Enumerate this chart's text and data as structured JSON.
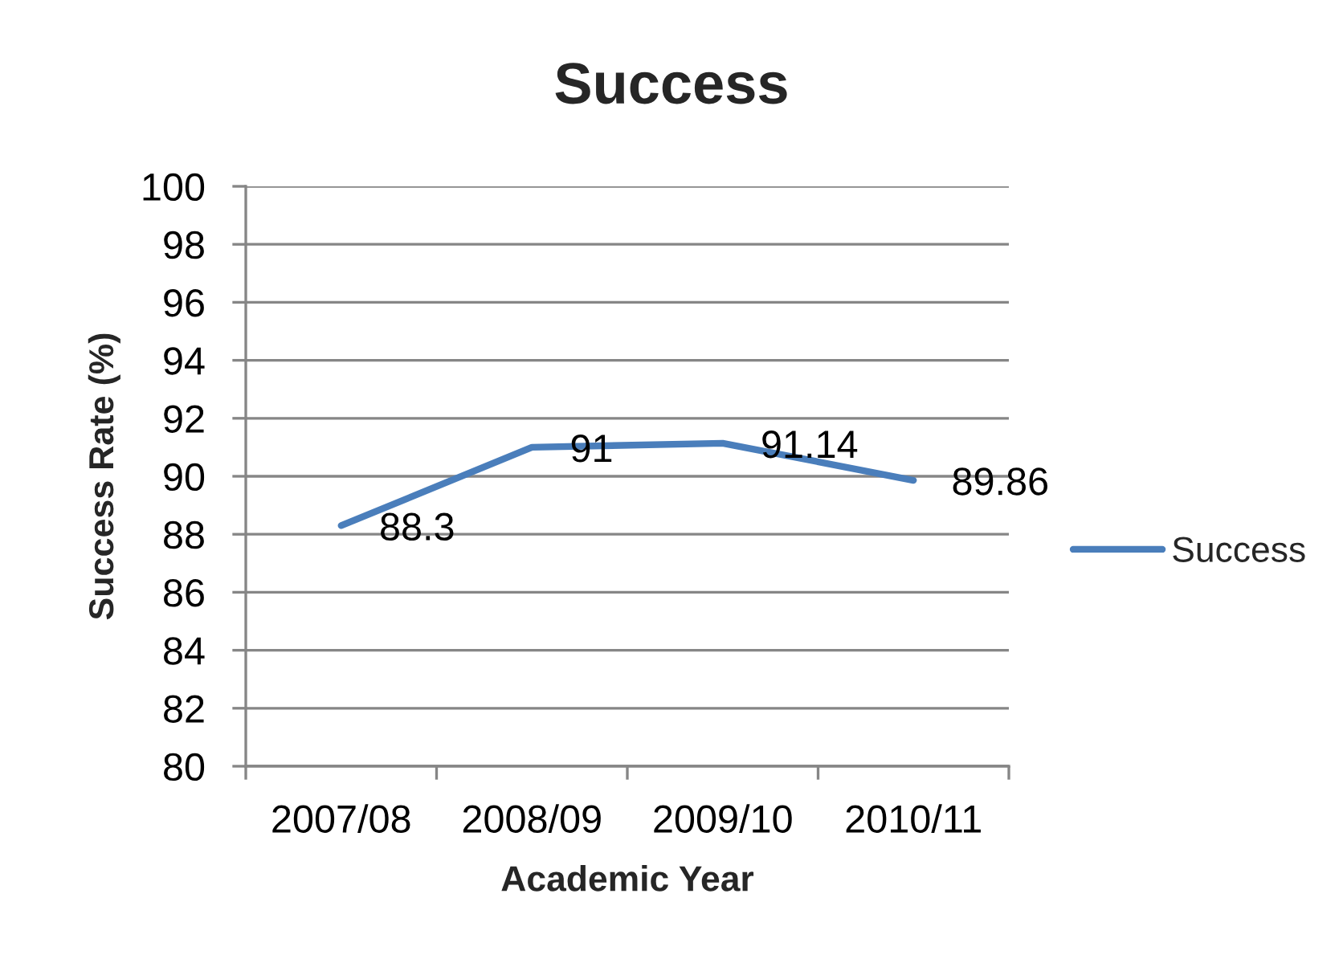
{
  "chart_data": {
    "type": "line",
    "title": "Success",
    "xlabel": "Academic Year",
    "ylabel": "Success Rate (%)",
    "categories": [
      "2007/08",
      "2008/09",
      "2009/10",
      "2010/11"
    ],
    "series": [
      {
        "name": "Success",
        "color": "#4a7ebb",
        "values": [
          88.3,
          91,
          91.14,
          89.86
        ]
      }
    ],
    "ylim": [
      80,
      100
    ],
    "yticks": [
      80,
      82,
      84,
      86,
      88,
      90,
      92,
      94,
      96,
      98,
      100
    ],
    "grid": "y",
    "legend": "right",
    "data_labels": true,
    "line_style": "solid"
  }
}
